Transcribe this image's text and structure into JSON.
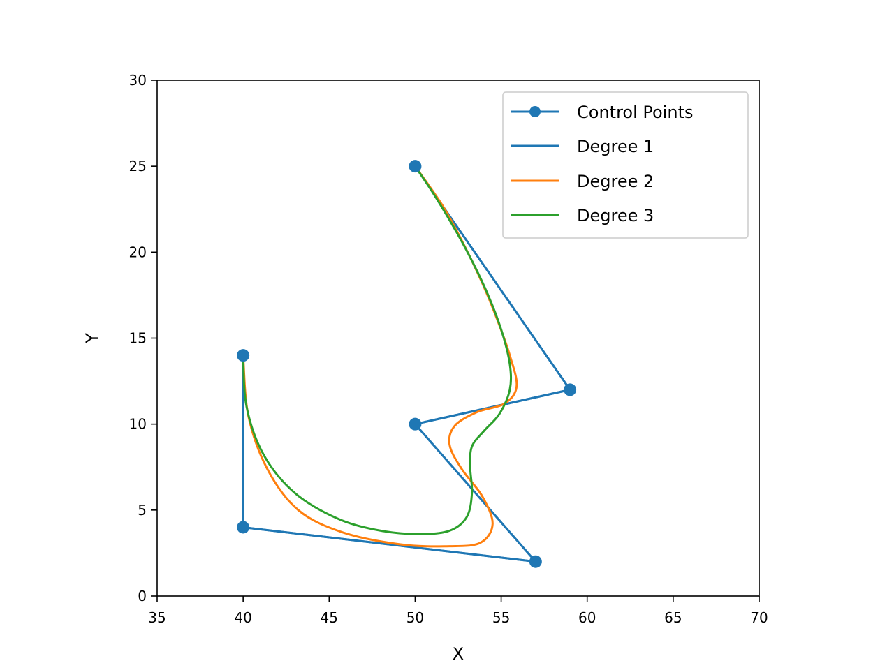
{
  "chart_data": {
    "type": "line",
    "title": "",
    "xlabel": "X",
    "ylabel": "Y",
    "xlim": [
      35,
      70
    ],
    "ylim": [
      0,
      30
    ],
    "xticks": [
      35,
      40,
      45,
      50,
      55,
      60,
      65,
      70
    ],
    "yticks": [
      0,
      5,
      10,
      15,
      20,
      25,
      30
    ],
    "grid": false,
    "legend_position": "top-right",
    "control_points": {
      "name": "Control Points",
      "color": "#1f77b4",
      "marker": "circle",
      "points": [
        [
          40,
          14
        ],
        [
          40,
          4
        ],
        [
          57,
          2
        ],
        [
          50,
          10
        ],
        [
          59,
          12
        ],
        [
          50,
          25
        ]
      ]
    },
    "series": [
      {
        "name": "Degree 1",
        "color": "#1f77b4",
        "points": [
          [
            40,
            14
          ],
          [
            40,
            4
          ],
          [
            57,
            2
          ],
          [
            50,
            10
          ],
          [
            59,
            12
          ],
          [
            50,
            25
          ]
        ]
      },
      {
        "name": "Degree 2",
        "color": "#ff7f0e",
        "points": [
          [
            40,
            14
          ],
          [
            40.3,
            10.5
          ],
          [
            41.4,
            7.4
          ],
          [
            43.2,
            5.0
          ],
          [
            45.8,
            3.7
          ],
          [
            49.2,
            3.0
          ],
          [
            52.0,
            2.9
          ],
          [
            53.8,
            3.1
          ],
          [
            54.5,
            4.2
          ],
          [
            53.9,
            5.8
          ],
          [
            52.7,
            7.4
          ],
          [
            52.0,
            8.8
          ],
          [
            52.3,
            9.9
          ],
          [
            53.6,
            10.7
          ],
          [
            55.2,
            11.2
          ],
          [
            55.9,
            12.2
          ],
          [
            55.5,
            14.0
          ],
          [
            54.8,
            16.0
          ],
          [
            53.9,
            18.2
          ],
          [
            52.8,
            20.5
          ],
          [
            51.6,
            22.7
          ],
          [
            50,
            25
          ]
        ]
      },
      {
        "name": "Degree 3",
        "color": "#2ca02c",
        "points": [
          [
            40,
            14
          ],
          [
            40.2,
            11.0
          ],
          [
            41.2,
            8.2
          ],
          [
            43.0,
            6.0
          ],
          [
            45.5,
            4.5
          ],
          [
            48.0,
            3.8
          ],
          [
            50.3,
            3.6
          ],
          [
            52.0,
            3.8
          ],
          [
            53.0,
            4.6
          ],
          [
            53.3,
            6.0
          ],
          [
            53.2,
            7.5
          ],
          [
            53.3,
            8.7
          ],
          [
            54.0,
            9.6
          ],
          [
            54.9,
            10.6
          ],
          [
            55.5,
            12.0
          ],
          [
            55.5,
            13.5
          ],
          [
            55.0,
            15.5
          ],
          [
            54.2,
            17.6
          ],
          [
            53.2,
            19.7
          ],
          [
            52.1,
            21.7
          ],
          [
            51.0,
            23.5
          ],
          [
            50,
            25
          ]
        ]
      }
    ]
  }
}
